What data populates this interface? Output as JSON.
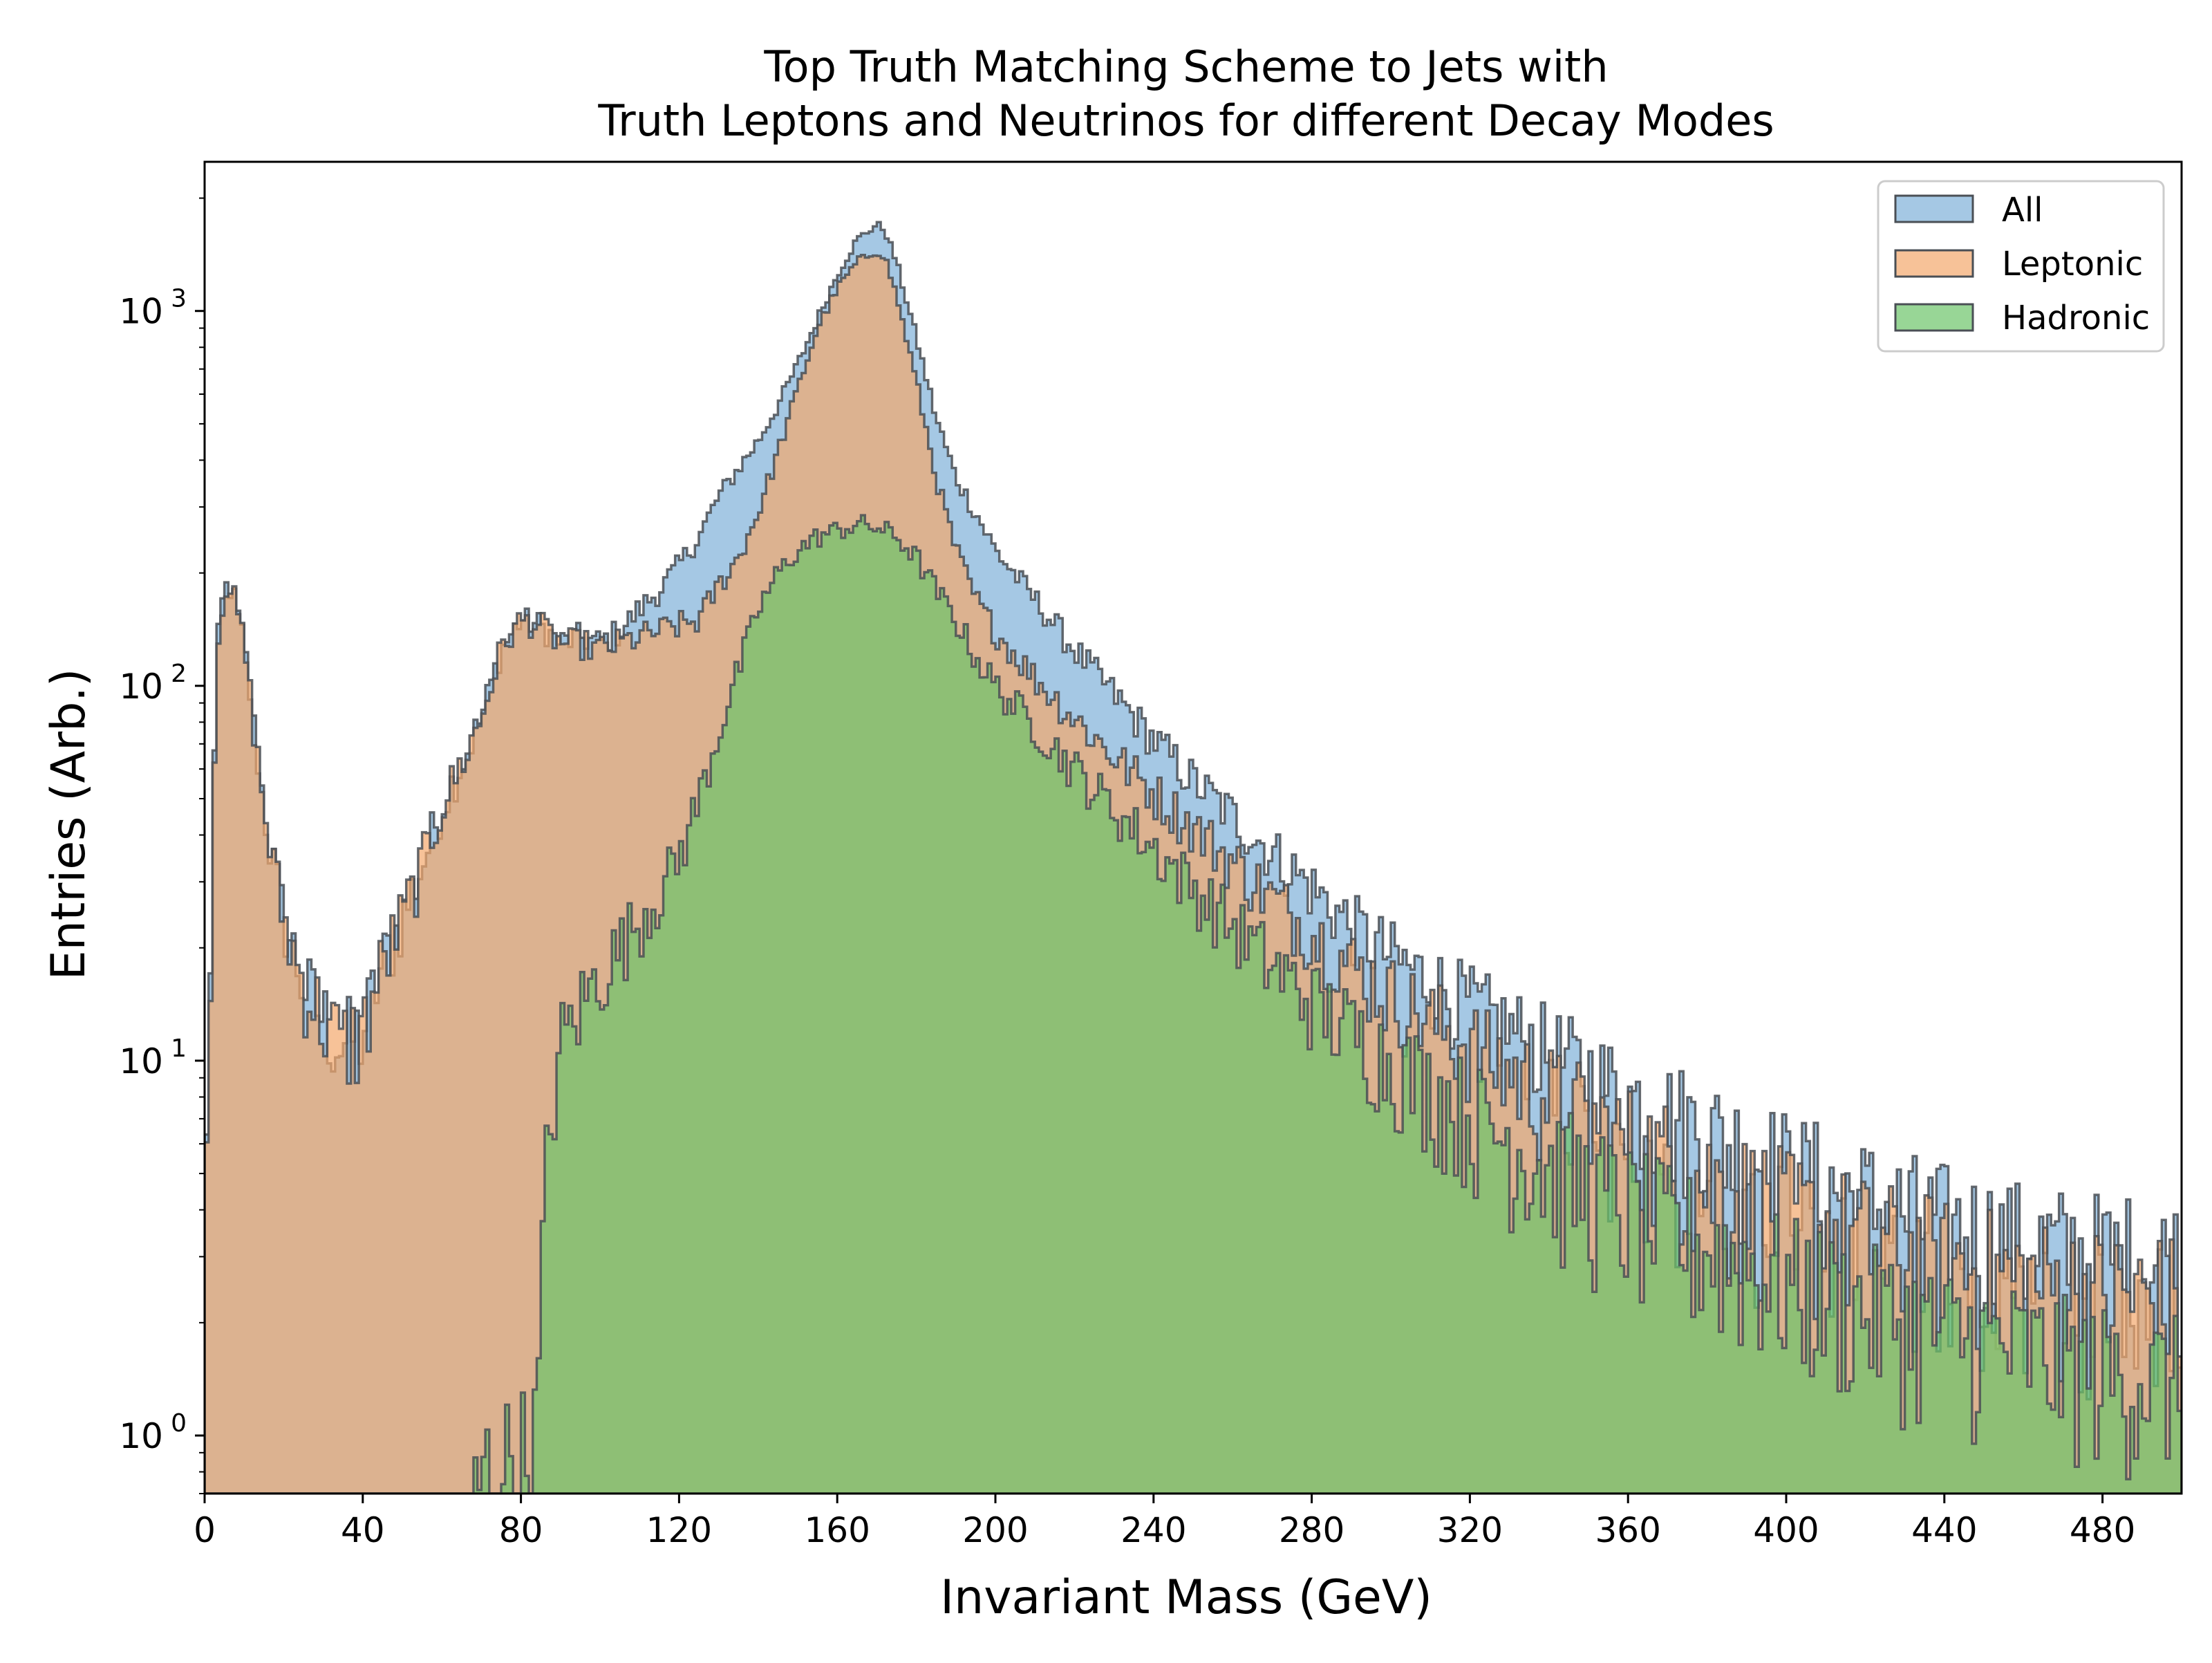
{
  "chart_data": {
    "type": "histogram",
    "title": "Top Truth Matching Scheme to Jets with\nTruth Leptons and Neutrinos for different Decay Modes",
    "title_lines": [
      "Top Truth Matching Scheme to Jets with",
      "Truth Leptons and Neutrinos for different Decay Modes"
    ],
    "xlabel": "Invariant Mass (GeV)",
    "ylabel": "Entries (Arb.)",
    "xlim": [
      0,
      500
    ],
    "ylim": [
      0.7,
      2500
    ],
    "yscale": "log",
    "bin_width": 1,
    "x_ticks": [
      0,
      40,
      80,
      120,
      160,
      200,
      240,
      280,
      320,
      360,
      400,
      440,
      480
    ],
    "y_ticks": [
      {
        "value": 1,
        "base": "10",
        "exp": "0"
      },
      {
        "value": 10,
        "base": "10",
        "exp": "1"
      },
      {
        "value": 100,
        "base": "10",
        "exp": "2"
      },
      {
        "value": 1000,
        "base": "10",
        "exp": "3"
      }
    ],
    "legend_position": "top-right",
    "grid": false,
    "series": [
      {
        "name": "All",
        "color": "#7fb0d8",
        "edge": "#4a4f55",
        "x": [
          0,
          3,
          5,
          7,
          10,
          13,
          16,
          20,
          25,
          30,
          35,
          40,
          45,
          50,
          55,
          60,
          65,
          70,
          75,
          80,
          85,
          90,
          95,
          100,
          105,
          110,
          115,
          120,
          125,
          130,
          135,
          140,
          145,
          150,
          155,
          160,
          165,
          170,
          172,
          175,
          180,
          185,
          190,
          195,
          200,
          210,
          220,
          230,
          240,
          250,
          260,
          270,
          280,
          290,
          300,
          320,
          340,
          360,
          380,
          400,
          420,
          440,
          460,
          480,
          500
        ],
        "y": [
          3,
          120,
          185,
          180,
          130,
          70,
          40,
          24,
          16,
          13,
          11,
          12,
          18,
          24,
          33,
          48,
          62,
          82,
          125,
          150,
          145,
          130,
          135,
          130,
          140,
          160,
          180,
          210,
          250,
          320,
          380,
          450,
          560,
          720,
          950,
          1250,
          1550,
          1700,
          1650,
          1350,
          850,
          520,
          360,
          290,
          230,
          170,
          125,
          95,
          72,
          56,
          45,
          36,
          29,
          23,
          19,
          14,
          10.5,
          8,
          6.5,
          5,
          4.2,
          3.6,
          3.2,
          3,
          2.9
        ]
      },
      {
        "name": "Leptonic",
        "color": "#f4a86c",
        "edge": "#4a4f55",
        "x": [
          0,
          3,
          5,
          7,
          10,
          13,
          16,
          20,
          25,
          30,
          35,
          40,
          45,
          50,
          55,
          60,
          65,
          70,
          75,
          80,
          85,
          90,
          95,
          100,
          105,
          110,
          115,
          120,
          125,
          130,
          135,
          140,
          145,
          150,
          155,
          160,
          165,
          170,
          172,
          175,
          180,
          185,
          190,
          195,
          200,
          210,
          220,
          230,
          240,
          250,
          260,
          270,
          280,
          290,
          300,
          320,
          340,
          360,
          380,
          400,
          420,
          440,
          460,
          480,
          500
        ],
        "y": [
          3,
          120,
          185,
          180,
          130,
          70,
          40,
          24,
          16,
          13,
          11,
          12,
          18,
          24,
          33,
          48,
          62,
          82,
          125,
          150,
          145,
          130,
          130,
          125,
          130,
          135,
          140,
          145,
          150,
          185,
          220,
          290,
          420,
          620,
          900,
          1150,
          1350,
          1450,
          1400,
          1100,
          650,
          360,
          230,
          170,
          140,
          105,
          82,
          65,
          52,
          42,
          34,
          27,
          22,
          18,
          15,
          11,
          8,
          6,
          4.8,
          3.9,
          3.3,
          2.9,
          2.6,
          2.4,
          2.3
        ]
      },
      {
        "name": "Hadronic",
        "color": "#6cc46a",
        "edge": "#4a4f55",
        "x": [
          0,
          60,
          70,
          80,
          84,
          86,
          88,
          90,
          95,
          100,
          105,
          110,
          115,
          120,
          125,
          130,
          135,
          140,
          145,
          150,
          155,
          160,
          165,
          170,
          175,
          180,
          185,
          190,
          195,
          200,
          210,
          220,
          230,
          240,
          250,
          260,
          270,
          280,
          290,
          300,
          320,
          340,
          360,
          380,
          400,
          420,
          440,
          460,
          480,
          500
        ],
        "y": [
          0,
          0,
          0.8,
          0.9,
          1,
          4,
          8,
          11,
          14,
          17,
          20,
          24,
          28,
          35,
          50,
          75,
          110,
          160,
          200,
          230,
          250,
          260,
          270,
          265,
          250,
          220,
          180,
          150,
          120,
          100,
          78,
          60,
          47,
          37,
          29,
          23,
          18,
          14.5,
          12,
          10,
          7.2,
          5.3,
          4,
          3.2,
          2.6,
          2.2,
          1.9,
          1.7,
          1.5,
          1.4
        ]
      }
    ]
  }
}
